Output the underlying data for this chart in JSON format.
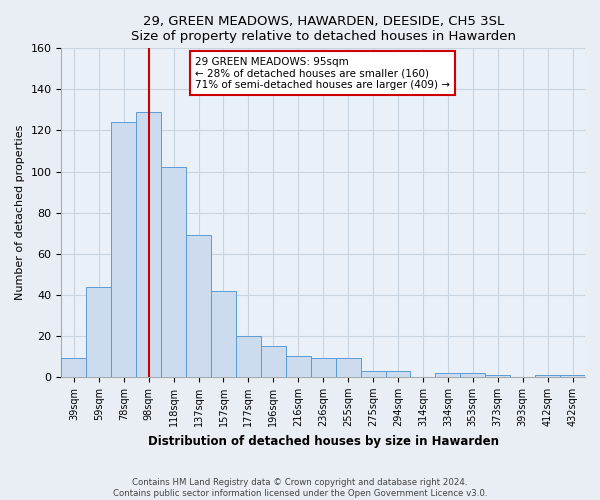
{
  "title": "29, GREEN MEADOWS, HAWARDEN, DEESIDE, CH5 3SL",
  "subtitle": "Size of property relative to detached houses in Hawarden",
  "xlabel": "Distribution of detached houses by size in Hawarden",
  "ylabel": "Number of detached properties",
  "categories": [
    "39sqm",
    "59sqm",
    "78sqm",
    "98sqm",
    "118sqm",
    "137sqm",
    "157sqm",
    "177sqm",
    "196sqm",
    "216sqm",
    "236sqm",
    "255sqm",
    "275sqm",
    "294sqm",
    "314sqm",
    "334sqm",
    "353sqm",
    "373sqm",
    "393sqm",
    "412sqm",
    "432sqm"
  ],
  "values": [
    9,
    44,
    124,
    129,
    102,
    69,
    42,
    20,
    15,
    10,
    9,
    9,
    3,
    3,
    0,
    2,
    2,
    1,
    0,
    1,
    1
  ],
  "bar_color": "#ccdcee",
  "bar_edge_color": "#5b9bd5",
  "ref_line_label": "29 GREEN MEADOWS: 95sqm",
  "annotation_line1": "← 28% of detached houses are smaller (160)",
  "annotation_line2": "71% of semi-detached houses are larger (409) →",
  "ylim": [
    0,
    160
  ],
  "yticks": [
    0,
    20,
    40,
    60,
    80,
    100,
    120,
    140,
    160
  ],
  "footer_line1": "Contains HM Land Registry data © Crown copyright and database right 2024.",
  "footer_line2": "Contains public sector information licensed under the Open Government Licence v3.0.",
  "bg_color": "#e8eef4",
  "plot_bg_color": "#eaf0f8",
  "annotation_box_color": "#ffffff",
  "annotation_box_edge": "#cc0000",
  "ref_line_color": "#cc0000",
  "ref_line_x": 3.0,
  "grid_color": "#c8d4e0"
}
